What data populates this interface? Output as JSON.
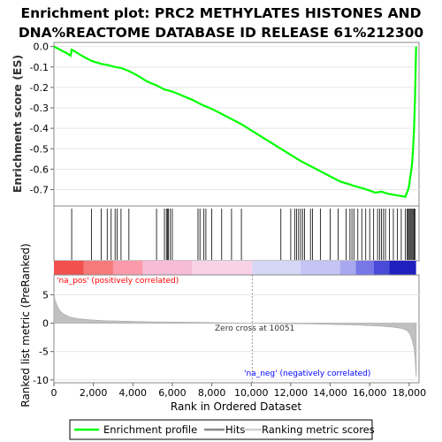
{
  "title_line1": "Enrichment plot: PRC2 METHYLATES HISTONES AND",
  "title_line2": "DNA%REACTOME DATABASE ID RELEASE 61%212300",
  "chart_data": [
    {
      "type": "line",
      "panel": "enrichment",
      "ylabel": "Enrichment score (ES)",
      "xlim": [
        0,
        18500
      ],
      "ylim": [
        -0.78,
        0.02
      ],
      "yticks": [
        0.0,
        -0.1,
        -0.2,
        -0.3,
        -0.4,
        -0.5,
        -0.6,
        -0.7
      ],
      "ytick_labels": [
        "0.0",
        "-0.1",
        "-0.2",
        "-0.3",
        "-0.4",
        "-0.5",
        "-0.6",
        "-0.7"
      ],
      "series": [
        {
          "name": "Enrichment profile",
          "color": "#00ff00",
          "x": [
            0,
            300,
            600,
            850,
            900,
            1500,
            1900,
            2400,
            2700,
            2900,
            3100,
            3400,
            3800,
            4200,
            4700,
            5200,
            5600,
            6000,
            6500,
            7000,
            7500,
            8000,
            8500,
            9000,
            9500,
            10000,
            10500,
            11000,
            11500,
            12000,
            12500,
            13000,
            13500,
            14000,
            14500,
            15000,
            15300,
            15700,
            16000,
            16300,
            16600,
            16900,
            17200,
            17500,
            17800,
            17950,
            18000,
            18050,
            18100,
            18150,
            18200,
            18250,
            18300,
            18350
          ],
          "y": [
            0.0,
            -0.015,
            -0.03,
            -0.045,
            -0.015,
            -0.05,
            -0.07,
            -0.085,
            -0.09,
            -0.095,
            -0.1,
            -0.105,
            -0.12,
            -0.14,
            -0.17,
            -0.19,
            -0.21,
            -0.22,
            -0.24,
            -0.26,
            -0.285,
            -0.305,
            -0.33,
            -0.355,
            -0.38,
            -0.41,
            -0.44,
            -0.47,
            -0.5,
            -0.53,
            -0.56,
            -0.585,
            -0.61,
            -0.635,
            -0.66,
            -0.675,
            -0.685,
            -0.695,
            -0.705,
            -0.715,
            -0.71,
            -0.72,
            -0.725,
            -0.73,
            -0.735,
            -0.7,
            -0.68,
            -0.64,
            -0.61,
            -0.57,
            -0.5,
            -0.4,
            -0.25,
            0.0
          ]
        }
      ]
    },
    {
      "type": "scatter",
      "panel": "hits",
      "series": [
        {
          "name": "Hits",
          "color": "#000000",
          "x": [
            900,
            1900,
            2400,
            2700,
            2900,
            3100,
            3200,
            3400,
            3800,
            5200,
            5600,
            5700,
            5750,
            5800,
            5900,
            6000,
            7300,
            7400,
            7600,
            7700,
            8000,
            8500,
            9000,
            9500,
            11500,
            12000,
            12200,
            12300,
            12400,
            12500,
            12600,
            12700,
            13000,
            13100,
            13500,
            14000,
            14400,
            14800,
            15000,
            15100,
            15200,
            15400,
            15600,
            15800,
            16000,
            16200,
            16400,
            16500,
            16600,
            16700,
            16800,
            17000,
            17200,
            17400,
            17600,
            17800,
            17900,
            17950,
            18000,
            18050,
            18100,
            18150,
            18200,
            18250,
            18300
          ]
        }
      ]
    },
    {
      "type": "area",
      "panel": "ranked_metric",
      "ylabel": "Ranked list metric (PreRanked)",
      "xlabel": "Rank in Ordered Dataset",
      "xlim": [
        0,
        18500
      ],
      "ylim": [
        -10.5,
        8.5
      ],
      "yticks": [
        5,
        0,
        -5,
        -10
      ],
      "ytick_labels": [
        "5",
        "0",
        "-5",
        "-10"
      ],
      "xticks": [
        0,
        2000,
        4000,
        6000,
        8000,
        10000,
        12000,
        14000,
        16000,
        18000
      ],
      "xtick_labels": [
        "0",
        "2,000",
        "4,000",
        "6,000",
        "8,000",
        "10,000",
        "12,000",
        "14,000",
        "16,000",
        "18,000"
      ],
      "zero_cross": 10051,
      "series": [
        {
          "name": "Ranking metric scores",
          "color": "#c0c0c0",
          "x": [
            0,
            50,
            150,
            300,
            500,
            800,
            1200,
            1800,
            2500,
            3500,
            5000,
            7000,
            9000,
            10051,
            11000,
            13000,
            15000,
            16500,
            17200,
            17600,
            17900,
            18050,
            18150,
            18250,
            18300,
            18330,
            18360
          ],
          "y": [
            5.5,
            4.2,
            3.2,
            2.2,
            1.6,
            1.1,
            0.8,
            0.6,
            0.45,
            0.35,
            0.25,
            0.15,
            0.05,
            0.0,
            -0.05,
            -0.15,
            -0.3,
            -0.5,
            -0.7,
            -0.9,
            -1.3,
            -2.0,
            -3.0,
            -4.5,
            -6.0,
            -8.0,
            -9.5
          ]
        }
      ]
    }
  ],
  "annotations": {
    "na_pos": "'na_pos' (positively correlated)",
    "na_neg": "'na_neg' (negatively correlated)",
    "zero_cross": "Zero cross at 10051",
    "pos_color": "#ff0000",
    "neg_color": "#0000ff"
  },
  "legend": {
    "items": [
      {
        "label": "Enrichment profile",
        "color": "#00ff00"
      },
      {
        "label": "Hits",
        "color": "#000000"
      },
      {
        "label": "Ranking metric scores",
        "color": "#c0c0c0"
      }
    ]
  }
}
